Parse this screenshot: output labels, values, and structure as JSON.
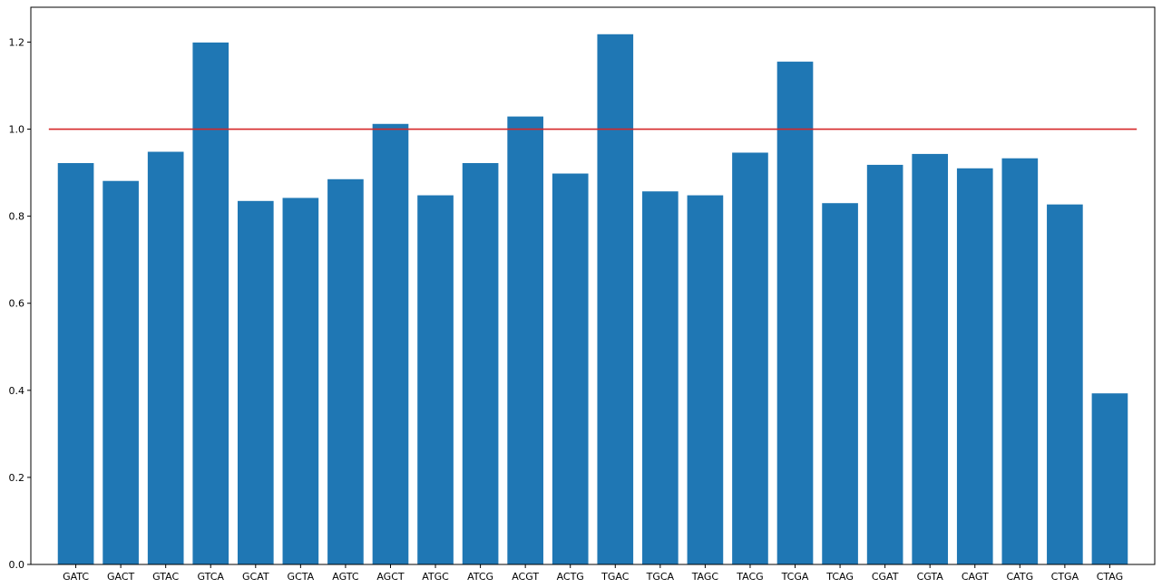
{
  "chart_data": {
    "type": "bar",
    "categories": [
      "GATC",
      "GACT",
      "GTAC",
      "GTCA",
      "GCAT",
      "GCTA",
      "AGTC",
      "AGCT",
      "ATGC",
      "ATCG",
      "ACGT",
      "ACTG",
      "TGAC",
      "TGCA",
      "TAGC",
      "TACG",
      "TCGA",
      "TCAG",
      "CGAT",
      "CGTA",
      "CAGT",
      "CATG",
      "CTGA",
      "CTAG"
    ],
    "values": [
      0.922,
      0.881,
      0.948,
      1.199,
      0.835,
      0.842,
      0.885,
      1.012,
      0.848,
      0.922,
      1.029,
      0.898,
      1.218,
      0.857,
      0.848,
      0.946,
      1.155,
      0.83,
      0.918,
      0.943,
      0.91,
      0.933,
      0.827,
      0.393
    ],
    "title": "",
    "xlabel": "",
    "ylabel": "",
    "ylim": [
      0,
      1.28
    ],
    "yticks": [
      "0.0",
      "0.2",
      "0.4",
      "0.6",
      "0.8",
      "1.0",
      "1.2"
    ],
    "reference_line": {
      "y": 1.0,
      "color": "#d62728"
    },
    "bar_color": "#1f77b4",
    "grid": false,
    "legend": "none"
  }
}
